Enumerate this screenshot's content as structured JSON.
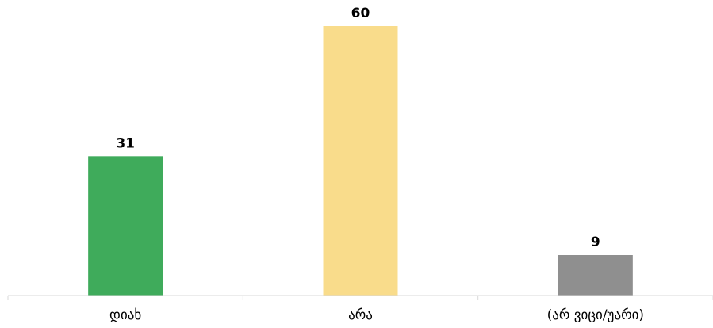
{
  "chart_data": {
    "type": "bar",
    "title": "",
    "xlabel": "",
    "ylabel": "",
    "categories": [
      "დიახ",
      "არა",
      "(არ ვიცი/უარი)"
    ],
    "values": [
      31,
      60,
      9
    ],
    "value_labels": [
      "31",
      "60",
      "9"
    ],
    "colors": [
      "#3fab5b",
      "#f9dc8b",
      "#8f8f8f"
    ],
    "ylim": [
      0,
      65
    ],
    "grid": false,
    "legend": "none",
    "axis_color": "#d9d9d9"
  }
}
